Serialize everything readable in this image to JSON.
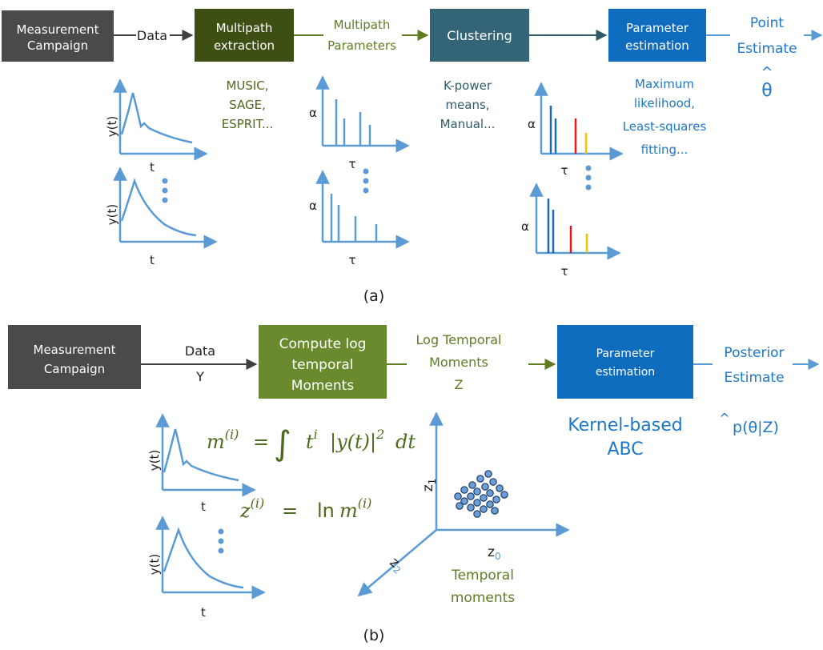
{
  "colors": {
    "dark_gray": "#4a4a4a",
    "dark_olive": "#3e4f14",
    "olive": "#6a8a2e",
    "olive_text": "#5f7e24",
    "teal": "#346577",
    "blue": "#0e6cbf",
    "light_blue": "#5b9bd5",
    "marker_blue": "#1a6bb3",
    "marker_red": "#e01b1b",
    "marker_yellow": "#f2c400",
    "arrow_dark": "#404040",
    "arrow_teal": "#2f5b69"
  },
  "panel_a": {
    "label": "(a)",
    "boxes": {
      "measurement": [
        "Measurement",
        "Campaign"
      ],
      "extraction": [
        "Multipath",
        "extraction"
      ],
      "clustering": "Clustering",
      "estimation": [
        "Parameter",
        "estimation"
      ]
    },
    "flow": {
      "data": "Data",
      "multipath_params": [
        "Multipath",
        "Parameters"
      ],
      "point_estimate": [
        "Point",
        "Estimate"
      ],
      "theta_hat": "θ",
      "hat_mark": "^"
    },
    "methods": {
      "extraction": [
        "MUSIC,",
        "SAGE,",
        "ESPRIT..."
      ],
      "clustering": [
        "K-power",
        "means,",
        "Manual..."
      ],
      "estimation": [
        "Maximum",
        "likelihood,",
        "Least-squares",
        "fitting..."
      ]
    },
    "axes": {
      "y": "y(t)",
      "t": "t",
      "alpha": "α",
      "tau": "τ"
    }
  },
  "panel_b": {
    "label": "(b)",
    "boxes": {
      "measurement": [
        "Measurement",
        "Campaign"
      ],
      "compute": [
        "Compute log",
        "temporal",
        "Moments"
      ],
      "estimation": [
        "Parameter",
        "estimation"
      ]
    },
    "flow": {
      "data": [
        "Data",
        "Y"
      ],
      "log_moments": [
        "Log Temporal",
        "Moments",
        "Z"
      ],
      "posterior": [
        "Posterior",
        "Estimate"
      ],
      "kernel": [
        "Kernel-based",
        "ABC"
      ],
      "posterior_formula": "p(θ|Z)",
      "hat_mark": "^"
    },
    "equations": {
      "moment_lhs": "m",
      "moment_sup": "(i)",
      "moment_eq": "=",
      "moment_integral": "∫",
      "moment_t": "t",
      "moment_t_sup": "i",
      "moment_body": "|y(t)|",
      "moment_sq": "2",
      "moment_dt": "dt",
      "log_lhs": "z",
      "log_sup": "(i)",
      "log_eq": "=",
      "log_ln": "ln",
      "log_m": "m",
      "log_m_sup": "(i)"
    },
    "moment_axes": {
      "z0": "z",
      "z0_sub": "0",
      "z1": "z",
      "z1_sub": "1",
      "z2": "z",
      "z2_sub": "2",
      "label": [
        "Temporal",
        "moments"
      ]
    },
    "axes": {
      "y": "y(t)",
      "t": "t"
    }
  }
}
